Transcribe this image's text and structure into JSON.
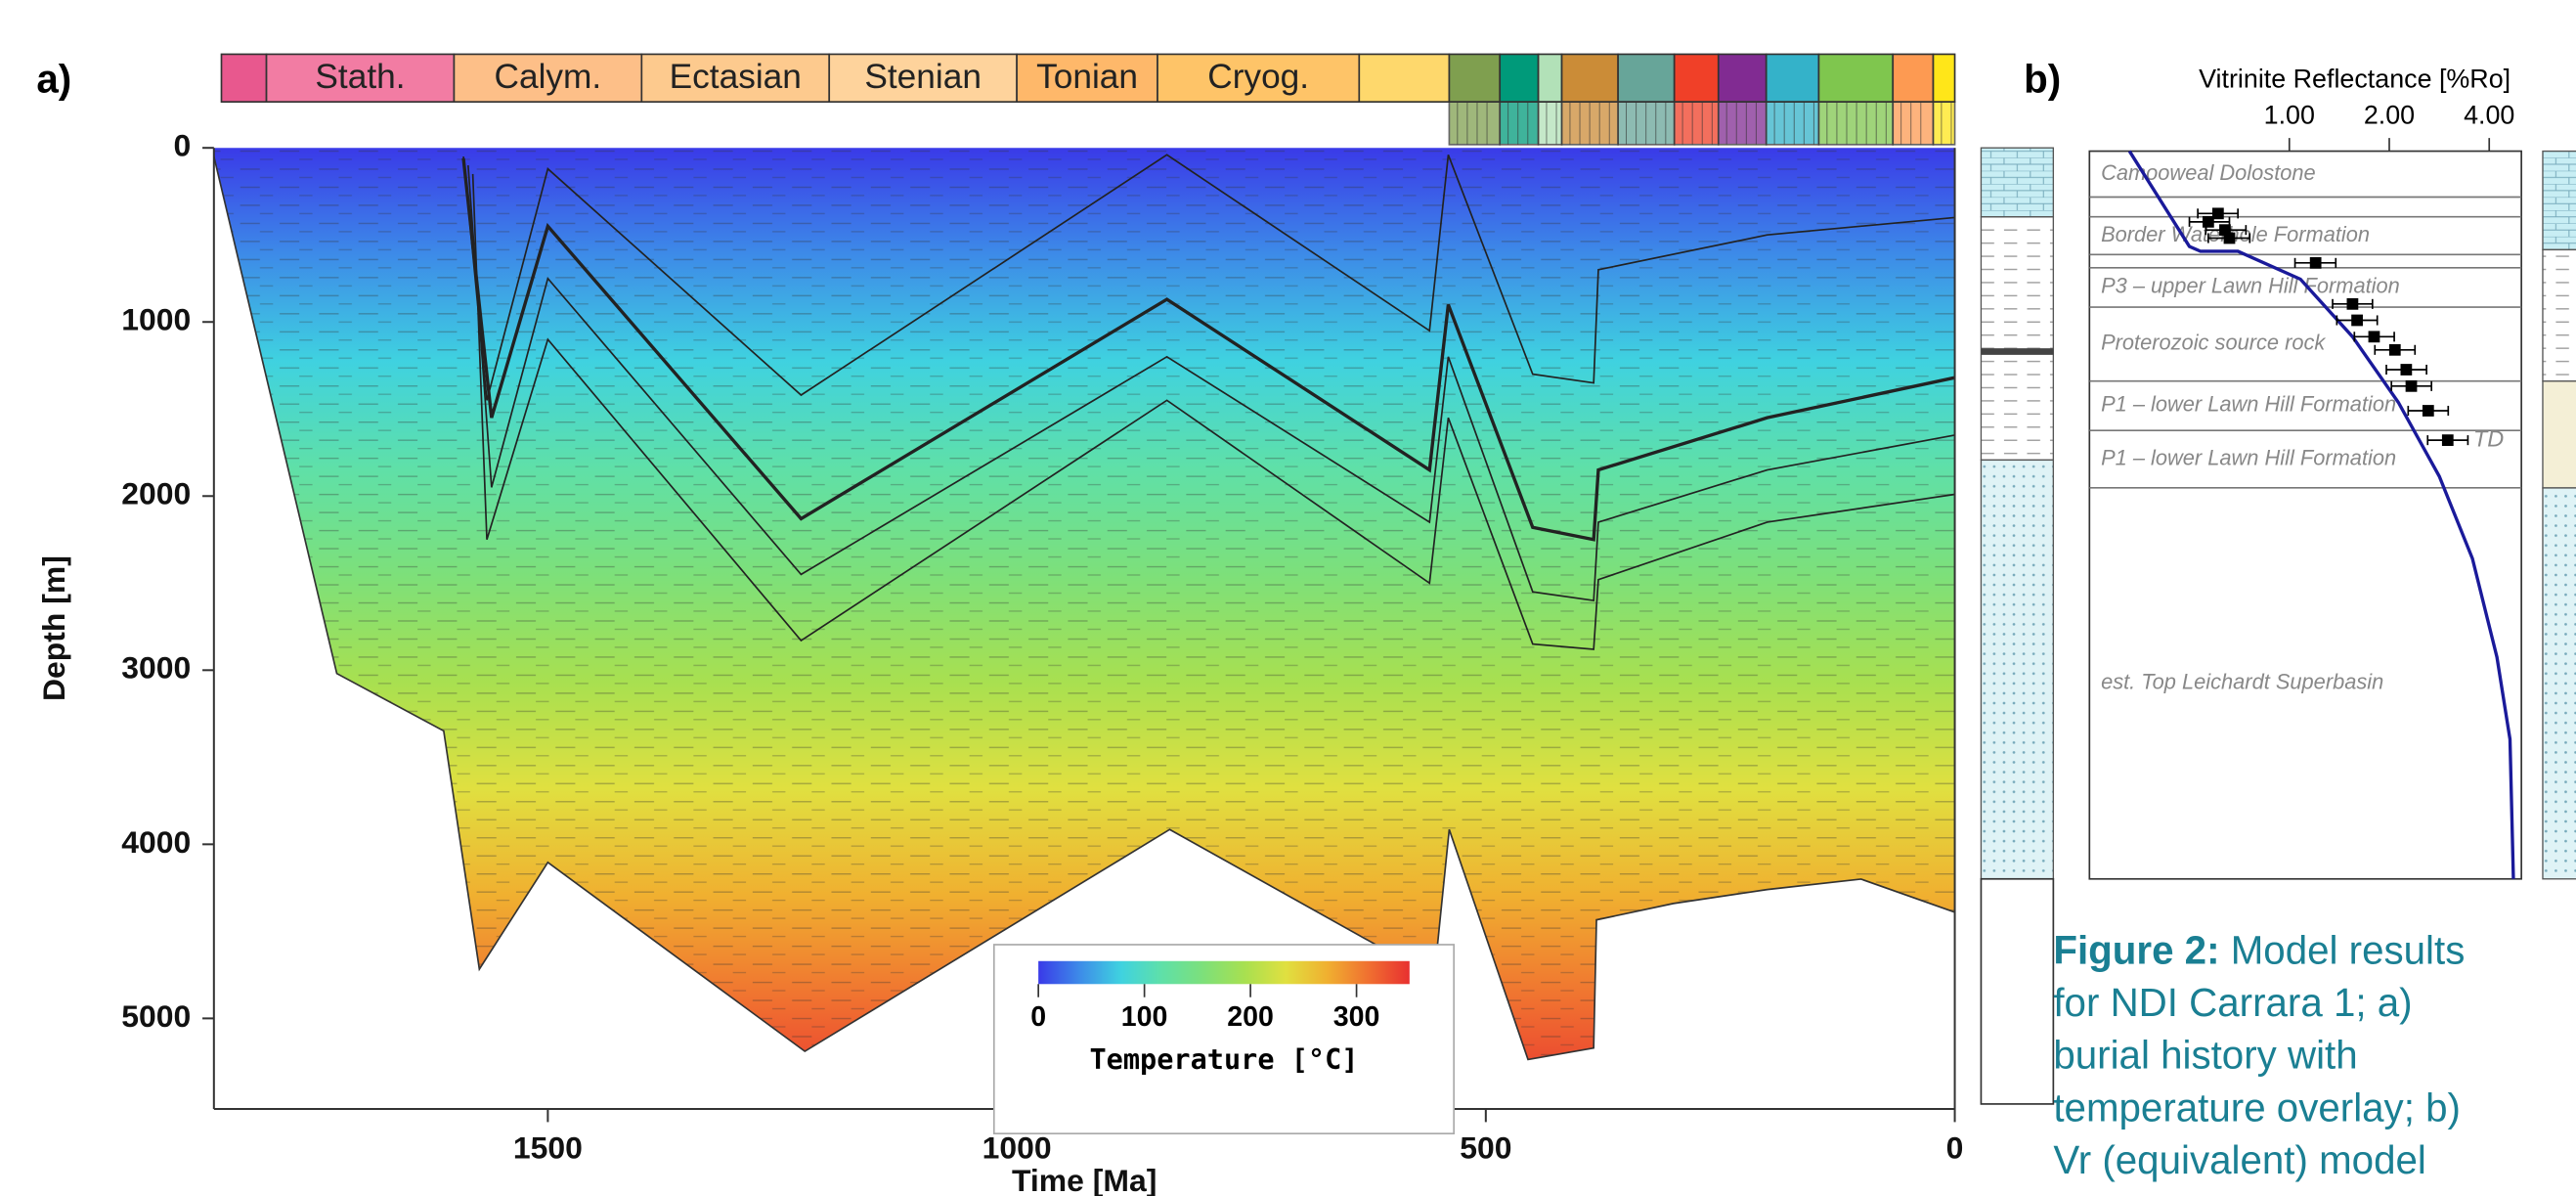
{
  "panel_labels": [
    "a)",
    "b)"
  ],
  "caption": {
    "label": "Figure 2:",
    "lines": [
      " Model results",
      "for NDI Carrara 1; a)",
      "burial history with",
      "temperature overlay; b)",
      "Vr (equivalent) model"
    ]
  },
  "chart_data": [
    {
      "type": "burial-history",
      "xlabel": "Time [Ma]",
      "ylabel": "Depth [m]",
      "xlim": [
        1856,
        0
      ],
      "ylim": [
        0,
        5520
      ],
      "xticks": [
        1500,
        1000,
        500,
        0
      ],
      "yticks": [
        0,
        1000,
        2000,
        3000,
        4000,
        5000
      ],
      "timescale": [
        {
          "start": 1848,
          "end": 1800,
          "color": "#e8588e"
        },
        {
          "start": 1800,
          "end": 1600,
          "label": "Stath.",
          "color": "#f27ca3"
        },
        {
          "start": 1600,
          "end": 1400,
          "label": "Calym.",
          "color": "#fdbf88"
        },
        {
          "start": 1400,
          "end": 1200,
          "label": "Ectasian",
          "color": "#fdca8e"
        },
        {
          "start": 1200,
          "end": 1000,
          "label": "Stenian",
          "color": "#fed39c"
        },
        {
          "start": 1000,
          "end": 850,
          "label": "Tonian",
          "color": "#feb86a"
        },
        {
          "start": 850,
          "end": 635,
          "label": "Cryog.",
          "color": "#fec468"
        },
        {
          "start": 635,
          "end": 539,
          "color": "#fed86c"
        },
        {
          "start": 539,
          "end": 485,
          "color": "#7f9f4f"
        },
        {
          "start": 485,
          "end": 444,
          "color": "#009a7a"
        },
        {
          "start": 444,
          "end": 419,
          "color": "#b2e1b8"
        },
        {
          "start": 419,
          "end": 359,
          "color": "#cb8c37"
        },
        {
          "start": 359,
          "end": 299,
          "color": "#67a599"
        },
        {
          "start": 299,
          "end": 252,
          "color": "#f04028"
        },
        {
          "start": 252,
          "end": 201,
          "color": "#812b92"
        },
        {
          "start": 201,
          "end": 145,
          "color": "#34b2c9"
        },
        {
          "start": 145,
          "end": 66,
          "color": "#7fc64e"
        },
        {
          "start": 66,
          "end": 23,
          "color": "#fd9a52"
        },
        {
          "start": 23,
          "end": 0,
          "color": "#ffe619"
        }
      ],
      "base": {
        "x": [
          1856,
          1725,
          1611,
          1573,
          1500,
          1226,
          837,
          555,
          539,
          455,
          385,
          382,
          300,
          200,
          100,
          0
        ],
        "values": [
          50,
          3019,
          3349,
          4717,
          4104,
          5189,
          3915,
          4764,
          3915,
          5236,
          5170,
          4434,
          4340,
          4260,
          4200,
          4390
        ]
      },
      "series": [
        {
          "x": [
            1590,
            1565,
            1500,
            1230,
            840,
            560,
            540,
            450,
            385,
            380,
            200,
            0
          ],
          "values": [
            50,
            1450,
            120,
            1420,
            40,
            1050,
            40,
            1300,
            1350,
            700,
            500,
            400
          ],
          "width": 1
        },
        {
          "x": [
            1590,
            1560,
            1500,
            1230,
            840,
            560,
            540,
            450,
            385,
            380,
            200,
            0
          ],
          "values": [
            60,
            1550,
            450,
            2130,
            870,
            1850,
            900,
            2180,
            2250,
            1850,
            1550,
            1320
          ],
          "width": 2
        },
        {
          "x": [
            1585,
            1560,
            1500,
            1230,
            840,
            560,
            540,
            450,
            385,
            380,
            200,
            0
          ],
          "values": [
            100,
            1950,
            750,
            2450,
            1200,
            2150,
            1200,
            2550,
            2600,
            2150,
            1850,
            1650
          ],
          "width": 1
        },
        {
          "x": [
            1580,
            1565,
            1500,
            1230,
            840,
            560,
            540,
            450,
            385,
            380,
            200,
            0
          ],
          "values": [
            150,
            2250,
            1100,
            2830,
            1450,
            2500,
            1550,
            2850,
            2880,
            2480,
            2150,
            1990
          ],
          "width": 1
        }
      ],
      "colorbar": {
        "title": "Temperature [°C]",
        "lim": [
          0,
          350
        ],
        "ticks": [
          0,
          100,
          200,
          300
        ],
        "colors": [
          "#3a3ae8",
          "#3d8be8",
          "#3fd2e0",
          "#5fe0a8",
          "#7de07a",
          "#a8e050",
          "#e0e040",
          "#f0b030",
          "#f07030",
          "#e83030"
        ]
      }
    },
    {
      "type": "vitrinite",
      "title": "Vitrinite Reflectance [%Ro]",
      "log": true,
      "xlim": [
        0.25,
        5
      ],
      "xticks": [
        {
          "value": 1,
          "label": "1.00"
        },
        {
          "value": 2,
          "label": "2.00"
        },
        {
          "value": 4,
          "label": "4.00"
        }
      ],
      "ylim": [
        0,
        4200
      ],
      "boundaries": [
        265,
        379,
        597,
        673,
        900,
        1327,
        1612,
        1943
      ],
      "formations": [
        {
          "name": "Camooweal Dolostone",
          "top": 0,
          "base": 265
        },
        {
          "name": "Border Waterhole Formation",
          "top": 379,
          "base": 597
        },
        {
          "name": "P3 – upper Lawn Hill Formation",
          "top": 673,
          "base": 900
        },
        {
          "name": "Proterozoic source rock",
          "top": 900,
          "base": 1327
        },
        {
          "name": "P1 – lower Lawn Hill Formation",
          "top": 1327,
          "base": 1612
        },
        {
          "name": "P1 – lower Lawn Hill Formation",
          "top": 1612,
          "base": 1943
        },
        {
          "name": "est. Top Leichardt Superbasin",
          "top": 1943,
          "base": 4200
        }
      ],
      "model": {
        "color": "#1a1a9a",
        "x": [
          0.33,
          0.5,
          0.54,
          0.7,
          1.08,
          1.55,
          2.13,
          2.83,
          3.56,
          4.22,
          4.62,
          4.73
        ],
        "values": [
          0,
          550,
          578,
          578,
          739,
          1071,
          1450,
          1877,
          2351,
          2920,
          3394,
          4200
        ]
      },
      "samples": {
        "x": [
          0.61,
          0.57,
          0.64,
          0.66,
          1.2,
          1.55,
          1.6,
          1.8,
          2.08,
          2.25,
          2.33,
          2.62,
          3.0
        ],
        "values": [
          360,
          408,
          455,
          502,
          645,
          882,
          976,
          1071,
          1147,
          1261,
          1356,
          1498,
          1668
        ],
        "x_min": [
          0.53,
          0.5,
          0.56,
          0.57,
          1.04,
          1.35,
          1.39,
          1.57,
          1.81,
          1.96,
          2.03,
          2.28,
          2.61
        ],
        "x_max": [
          0.7,
          0.66,
          0.74,
          0.76,
          1.38,
          1.78,
          1.84,
          2.07,
          2.39,
          2.59,
          2.68,
          3.01,
          3.45
        ]
      },
      "td": {
        "label": "TD",
        "depth": 1668
      }
    }
  ]
}
